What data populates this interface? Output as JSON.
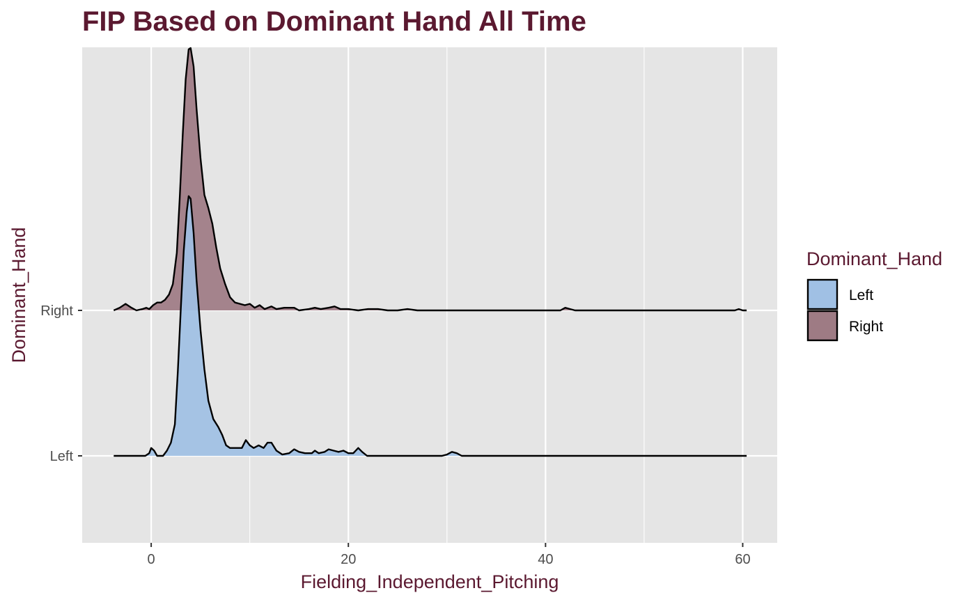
{
  "chart_data": {
    "type": "ridgeline-density",
    "title": "FIP Based on Dominant Hand All Time",
    "xlabel": "Fielding_Independent_Pitching",
    "ylabel": "Dominant_Hand",
    "xlim": [
      -7,
      63.5
    ],
    "xticks": [
      0,
      20,
      40,
      60
    ],
    "grid": true,
    "legend_position": "right",
    "legend_title": "Dominant_Hand",
    "categories": [
      "Left",
      "Right"
    ],
    "series": [
      {
        "name": "Left",
        "color": "#a0c0e4",
        "density": [
          [
            -3.8,
            0
          ],
          [
            -0.6,
            0
          ],
          [
            -0.2,
            0.01
          ],
          [
            0,
            0.03
          ],
          [
            0.3,
            0.02
          ],
          [
            0.6,
            0
          ],
          [
            1.2,
            0
          ],
          [
            1.6,
            0.02
          ],
          [
            2,
            0.05
          ],
          [
            2.4,
            0.12
          ],
          [
            2.7,
            0.32
          ],
          [
            3,
            0.56
          ],
          [
            3.3,
            0.78
          ],
          [
            3.6,
            0.93
          ],
          [
            3.8,
            0.99
          ],
          [
            4,
            0.98
          ],
          [
            4.3,
            0.85
          ],
          [
            4.6,
            0.67
          ],
          [
            5,
            0.48
          ],
          [
            5.4,
            0.33
          ],
          [
            5.8,
            0.21
          ],
          [
            6.3,
            0.14
          ],
          [
            6.8,
            0.11
          ],
          [
            7.2,
            0.08
          ],
          [
            7.6,
            0.04
          ],
          [
            8,
            0.03
          ],
          [
            8.6,
            0.03
          ],
          [
            9.2,
            0.03
          ],
          [
            9.6,
            0.06
          ],
          [
            10,
            0.04
          ],
          [
            10.4,
            0.03
          ],
          [
            10.9,
            0.04
          ],
          [
            11.4,
            0.03
          ],
          [
            11.8,
            0.05
          ],
          [
            12.2,
            0.05
          ],
          [
            12.7,
            0.02
          ],
          [
            13.3,
            0.005
          ],
          [
            14,
            0.01
          ],
          [
            14.5,
            0.025
          ],
          [
            15,
            0.015
          ],
          [
            15.6,
            0.01
          ],
          [
            16.3,
            0.01
          ],
          [
            16.6,
            0.02
          ],
          [
            17,
            0.01
          ],
          [
            17.6,
            0.015
          ],
          [
            18,
            0.025
          ],
          [
            18.5,
            0.02
          ],
          [
            19,
            0.015
          ],
          [
            19.5,
            0.02
          ],
          [
            20,
            0.01
          ],
          [
            20.5,
            0.01
          ],
          [
            21,
            0.03
          ],
          [
            21.4,
            0.015
          ],
          [
            21.9,
            0
          ],
          [
            29.5,
            0
          ],
          [
            30,
            0.005
          ],
          [
            30.5,
            0.015
          ],
          [
            31,
            0.01
          ],
          [
            31.5,
            0
          ],
          [
            60.4,
            0
          ]
        ]
      },
      {
        "name": "Right",
        "color": "#9e7b84",
        "density": [
          [
            -3.8,
            0
          ],
          [
            -3.2,
            0.01
          ],
          [
            -2.6,
            0.025
          ],
          [
            -2,
            0.01
          ],
          [
            -1.5,
            0
          ],
          [
            -0.9,
            0.005
          ],
          [
            -0.5,
            0.01
          ],
          [
            -0.2,
            0.005
          ],
          [
            0.2,
            0.02
          ],
          [
            0.6,
            0.03
          ],
          [
            1,
            0.03
          ],
          [
            1.4,
            0.04
          ],
          [
            1.8,
            0.06
          ],
          [
            2.2,
            0.1
          ],
          [
            2.6,
            0.22
          ],
          [
            2.9,
            0.43
          ],
          [
            3.2,
            0.67
          ],
          [
            3.5,
            0.88
          ],
          [
            3.8,
            0.995
          ],
          [
            4,
            1.0
          ],
          [
            4.3,
            0.93
          ],
          [
            4.6,
            0.77
          ],
          [
            5,
            0.58
          ],
          [
            5.4,
            0.44
          ],
          [
            5.8,
            0.39
          ],
          [
            6.2,
            0.33
          ],
          [
            6.6,
            0.24
          ],
          [
            7,
            0.16
          ],
          [
            7.5,
            0.1
          ],
          [
            8,
            0.05
          ],
          [
            8.5,
            0.03
          ],
          [
            9.5,
            0.02
          ],
          [
            10,
            0.025
          ],
          [
            10.5,
            0.01
          ],
          [
            11,
            0.02
          ],
          [
            11.5,
            0.005
          ],
          [
            12.2,
            0.015
          ],
          [
            12.7,
            0.005
          ],
          [
            13.5,
            0.01
          ],
          [
            14.5,
            0.01
          ],
          [
            15,
            0
          ],
          [
            16,
            0.005
          ],
          [
            16.6,
            0.01
          ],
          [
            17.2,
            0.005
          ],
          [
            18,
            0.01
          ],
          [
            18.6,
            0.015
          ],
          [
            19.2,
            0.005
          ],
          [
            20,
            0.005
          ],
          [
            21,
            0
          ],
          [
            22,
            0.005
          ],
          [
            23,
            0.005
          ],
          [
            24,
            0
          ],
          [
            25,
            0
          ],
          [
            26,
            0.005
          ],
          [
            27,
            0
          ],
          [
            41.5,
            0
          ],
          [
            42,
            0.01
          ],
          [
            42.5,
            0.005
          ],
          [
            43,
            0
          ],
          [
            59.2,
            0
          ],
          [
            59.6,
            0.005
          ],
          [
            60,
            0
          ],
          [
            60.4,
            0
          ]
        ]
      }
    ]
  },
  "colors": {
    "title": "#5b1930",
    "panel_background": "#e5e5e5",
    "grid": "#ffffff",
    "line": "#000000",
    "tick_text": "#4d4d4d"
  }
}
